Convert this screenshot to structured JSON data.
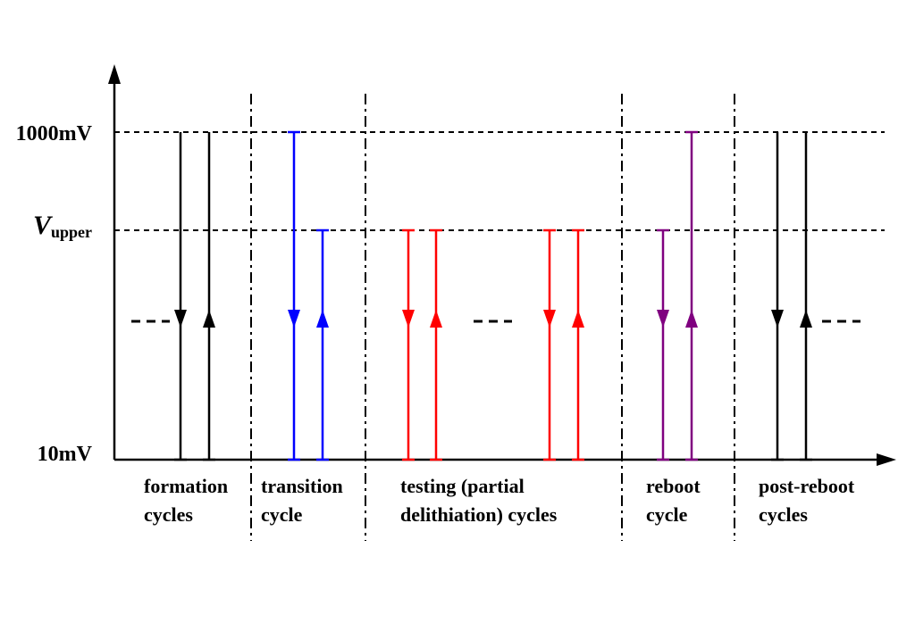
{
  "y_axis": {
    "ticks": [
      {
        "key": "top",
        "label": "1000mV"
      },
      {
        "key": "upper",
        "label_main": "V",
        "label_sub": "upper"
      },
      {
        "key": "bottom",
        "label": "10mV"
      }
    ]
  },
  "phases": [
    {
      "id": "formation",
      "line1": "formation",
      "line2": "cycles"
    },
    {
      "id": "transition",
      "line1": "transition",
      "line2": "cycle"
    },
    {
      "id": "testing",
      "line1": "testing (partial",
      "line2": "delithiation) cycles"
    },
    {
      "id": "reboot",
      "line1": "reboot",
      "line2": "cycle"
    },
    {
      "id": "post-reboot",
      "line1": "post-reboot",
      "line2": "cycles"
    }
  ],
  "colors": {
    "formation": "#000000",
    "transition": "#0000ff",
    "testing": "#ff0000",
    "reboot": "#800080",
    "post-reboot": "#000000"
  },
  "cycles": [
    {
      "phase": "formation",
      "discharge_from": "top",
      "charge_to": "top"
    },
    {
      "phase": "transition",
      "discharge_from": "top",
      "charge_to": "upper"
    },
    {
      "phase": "testing",
      "discharge_from": "upper",
      "charge_to": "upper"
    },
    {
      "phase": "testing",
      "discharge_from": "upper",
      "charge_to": "upper"
    },
    {
      "phase": "reboot",
      "discharge_from": "upper",
      "charge_to": "top"
    },
    {
      "phase": "post-reboot",
      "discharge_from": "top",
      "charge_to": "top"
    }
  ]
}
